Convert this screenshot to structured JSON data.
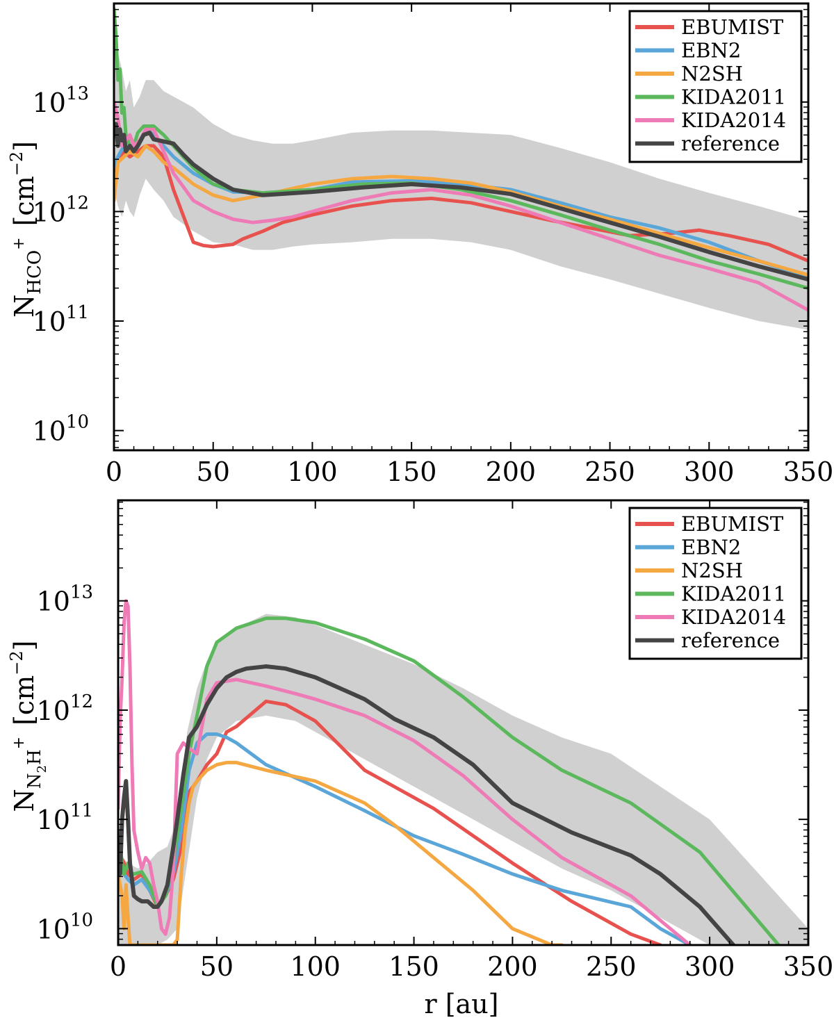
{
  "chart_data": [
    {
      "type": "line",
      "title": "",
      "xlabel": "",
      "ylabel": {
        "main": "N",
        "sub": "HCO",
        "sup": "+",
        "unit": "[cm",
        "unit_exp": "−2",
        "unit_close": "]"
      },
      "xlim": [
        0,
        350
      ],
      "ylim_log10": [
        9.82,
        13.9
      ],
      "yscale": "log",
      "x_ticks": [
        0,
        50,
        100,
        150,
        200,
        250,
        300,
        350
      ],
      "x_tick_labels": [
        "0",
        "50",
        "100",
        "150",
        "200",
        "250",
        "300",
        "350"
      ],
      "y_ticks": [
        {
          "exp": 10,
          "label": "10",
          "sup": "10"
        },
        {
          "exp": 11,
          "label": "10",
          "sup": "11"
        },
        {
          "exp": 12,
          "label": "10",
          "sup": "12"
        },
        {
          "exp": 13,
          "label": "10",
          "sup": "13"
        }
      ],
      "band": {
        "name": "spread",
        "color": "#d0d0d0",
        "x": [
          0,
          2,
          4,
          6,
          8,
          10,
          13,
          16,
          20,
          25,
          30,
          40,
          50,
          60,
          70,
          80,
          90,
          100,
          120,
          140,
          160,
          180,
          200,
          225,
          250,
          275,
          300,
          325,
          350
        ],
        "upper": [
          13.55,
          13.45,
          13.3,
          13.1,
          13.2,
          12.95,
          13.05,
          13.2,
          13.2,
          13.1,
          13.05,
          12.95,
          12.8,
          12.7,
          12.65,
          12.62,
          12.62,
          12.65,
          12.72,
          12.74,
          12.74,
          12.72,
          12.7,
          12.58,
          12.45,
          12.3,
          12.17,
          12.05,
          11.92
        ],
        "lower": [
          12.2,
          12.05,
          11.95,
          12.1,
          12.0,
          11.95,
          12.15,
          12.3,
          12.2,
          12.1,
          11.95,
          11.82,
          11.72,
          11.7,
          11.65,
          11.65,
          11.68,
          11.7,
          11.72,
          11.75,
          11.75,
          11.72,
          11.65,
          11.5,
          11.38,
          11.25,
          11.12,
          11.0,
          10.92
        ]
      },
      "series": [
        {
          "name": "EBUMIST",
          "color": "#e8524e",
          "x": [
            0,
            2,
            5,
            8,
            12,
            16,
            20,
            25,
            30,
            40,
            45,
            50,
            60,
            65,
            75,
            85,
            100,
            120,
            140,
            160,
            180,
            200,
            220,
            240,
            260,
            280,
            295,
            310,
            330,
            350
          ],
          "y": [
            12.2,
            12.45,
            12.55,
            12.5,
            12.55,
            12.6,
            12.6,
            12.5,
            12.2,
            11.72,
            11.69,
            11.68,
            11.7,
            11.75,
            11.82,
            11.9,
            11.97,
            12.05,
            12.1,
            12.12,
            12.08,
            12.0,
            11.92,
            11.85,
            11.78,
            11.8,
            11.83,
            11.78,
            11.7,
            11.55
          ]
        },
        {
          "name": "EBN2",
          "color": "#5ba6d9",
          "x": [
            0,
            2,
            5,
            8,
            12,
            16,
            20,
            25,
            30,
            40,
            50,
            60,
            75,
            100,
            120,
            150,
            175,
            200,
            225,
            250,
            275,
            300,
            325,
            350
          ],
          "y": [
            12.4,
            12.5,
            12.6,
            12.55,
            12.6,
            12.75,
            12.7,
            12.6,
            12.5,
            12.35,
            12.25,
            12.18,
            12.17,
            12.2,
            12.27,
            12.28,
            12.25,
            12.2,
            12.08,
            11.95,
            11.85,
            11.72,
            11.55,
            11.4
          ]
        },
        {
          "name": "N2SH",
          "color": "#f5a742",
          "x": [
            0,
            2,
            5,
            8,
            12,
            16,
            20,
            25,
            30,
            40,
            50,
            60,
            75,
            100,
            120,
            140,
            160,
            180,
            200,
            225,
            250,
            275,
            300,
            325,
            350
          ],
          "y": [
            12.1,
            12.45,
            12.5,
            12.55,
            12.5,
            12.6,
            12.55,
            12.45,
            12.4,
            12.25,
            12.15,
            12.1,
            12.15,
            12.25,
            12.3,
            12.32,
            12.3,
            12.26,
            12.18,
            12.05,
            11.93,
            11.8,
            11.67,
            11.55,
            11.42
          ]
        },
        {
          "name": "KIDA2011",
          "color": "#5cb85c",
          "x": [
            0,
            1,
            2,
            3,
            4,
            5,
            6,
            8,
            10,
            12,
            15,
            20,
            25,
            30,
            40,
            50,
            60,
            75,
            100,
            125,
            150,
            175,
            200,
            225,
            250,
            275,
            300,
            325,
            350
          ],
          "y": [
            13.85,
            13.6,
            13.2,
            13.3,
            12.9,
            12.95,
            12.7,
            12.6,
            12.6,
            12.72,
            12.78,
            12.78,
            12.7,
            12.6,
            12.4,
            12.25,
            12.2,
            12.17,
            12.2,
            12.25,
            12.26,
            12.2,
            12.1,
            11.97,
            11.83,
            11.7,
            11.55,
            11.43,
            11.3
          ]
        },
        {
          "name": "KIDA2014",
          "color": "#ee7ab6",
          "x": [
            0,
            2,
            4,
            6,
            8,
            10,
            13,
            16,
            20,
            25,
            30,
            40,
            50,
            60,
            70,
            80,
            90,
            100,
            120,
            140,
            160,
            180,
            200,
            225,
            250,
            275,
            300,
            325,
            350
          ],
          "y": [
            13.0,
            12.85,
            12.6,
            12.65,
            12.7,
            12.6,
            12.65,
            12.75,
            12.75,
            12.55,
            12.35,
            12.1,
            12.0,
            11.93,
            11.9,
            11.92,
            11.95,
            12.0,
            12.1,
            12.17,
            12.2,
            12.15,
            12.05,
            11.9,
            11.75,
            11.6,
            11.48,
            11.35,
            11.1
          ]
        },
        {
          "name": "reference",
          "color": "#444444",
          "x": [
            0,
            1,
            2,
            3,
            4,
            5,
            6,
            8,
            10,
            12,
            15,
            18,
            20,
            25,
            30,
            35,
            40,
            50,
            60,
            75,
            100,
            125,
            150,
            175,
            200,
            225,
            250,
            275,
            300,
            325,
            350
          ],
          "y": [
            12.7,
            12.8,
            12.6,
            12.75,
            12.65,
            12.7,
            12.55,
            12.6,
            12.55,
            12.6,
            12.7,
            12.72,
            12.66,
            12.64,
            12.62,
            12.52,
            12.43,
            12.3,
            12.2,
            12.15,
            12.18,
            12.22,
            12.25,
            12.22,
            12.16,
            12.03,
            11.9,
            11.77,
            11.63,
            11.5,
            11.38
          ]
        }
      ],
      "legend": {
        "position": "upper right",
        "entries": [
          "EBUMIST",
          "EBN2",
          "N2SH",
          "KIDA2011",
          "KIDA2014",
          "reference"
        ]
      }
    },
    {
      "type": "line",
      "title": "",
      "xlabel": "r [au]",
      "ylabel": {
        "main": "N",
        "sub": "N",
        "sub2": "2",
        "sub3": "H",
        "sup": "+",
        "unit": "[cm",
        "unit_exp": "−2",
        "unit_close": "]"
      },
      "xlim": [
        0,
        350
      ],
      "ylim_log10": [
        9.85,
        13.92
      ],
      "yscale": "log",
      "x_ticks": [
        0,
        50,
        100,
        150,
        200,
        250,
        300,
        350
      ],
      "x_tick_labels": [
        "0",
        "50",
        "100",
        "150",
        "200",
        "250",
        "300",
        "350"
      ],
      "y_ticks": [
        {
          "exp": 10,
          "label": "10",
          "sup": "10"
        },
        {
          "exp": 11,
          "label": "10",
          "sup": "11"
        },
        {
          "exp": 12,
          "label": "10",
          "sup": "12"
        },
        {
          "exp": 13,
          "label": "10",
          "sup": "13"
        }
      ],
      "band": {
        "name": "spread",
        "color": "#d0d0d0",
        "x": [
          0,
          5,
          10,
          15,
          20,
          25,
          30,
          35,
          40,
          45,
          50,
          60,
          75,
          90,
          100,
          125,
          150,
          175,
          200,
          225,
          250,
          275,
          300,
          325,
          350
        ],
        "upper": [
          10.7,
          10.6,
          10.55,
          10.6,
          10.7,
          10.75,
          11.0,
          11.8,
          12.2,
          12.45,
          12.6,
          12.75,
          12.88,
          12.85,
          12.78,
          12.6,
          12.42,
          12.2,
          11.95,
          11.75,
          11.6,
          11.3,
          11.0,
          10.5,
          10.0
        ],
        "lower": [
          9.85,
          9.85,
          9.85,
          9.85,
          9.85,
          9.9,
          10.0,
          10.6,
          11.2,
          11.55,
          11.75,
          11.9,
          11.95,
          11.9,
          11.8,
          11.55,
          11.3,
          11.05,
          10.8,
          10.55,
          10.35,
          10.1,
          9.85,
          9.85,
          9.85
        ]
      },
      "series": [
        {
          "name": "EBUMIST",
          "color": "#e8524e",
          "x": [
            0,
            3,
            5,
            8,
            12,
            16,
            20,
            24,
            28,
            32,
            36,
            40,
            45,
            50,
            55,
            60,
            75,
            85,
            100,
            125,
            140,
            160,
            200,
            230,
            260,
            275
          ],
          "y": [
            10.7,
            10.6,
            10.5,
            10.45,
            10.5,
            10.35,
            10.2,
            10.3,
            10.45,
            10.75,
            11.25,
            11.35,
            11.5,
            11.6,
            11.8,
            11.85,
            12.08,
            12.05,
            11.9,
            11.45,
            11.3,
            11.1,
            10.6,
            10.25,
            9.95,
            9.85
          ]
        },
        {
          "name": "EBN2",
          "color": "#5ba6d9",
          "x": [
            0,
            3,
            5,
            8,
            12,
            16,
            20,
            24,
            28,
            32,
            36,
            40,
            45,
            50,
            55,
            60,
            75,
            100,
            125,
            150,
            175,
            200,
            225,
            260,
            275,
            290
          ],
          "y": [
            10.6,
            10.5,
            10.45,
            10.4,
            10.45,
            10.35,
            10.22,
            10.3,
            10.5,
            10.9,
            11.45,
            11.7,
            11.78,
            11.78,
            11.75,
            11.7,
            11.5,
            11.3,
            11.08,
            10.85,
            10.68,
            10.5,
            10.35,
            10.2,
            10.0,
            9.85
          ]
        },
        {
          "name": "N2SH",
          "color": "#f5a742",
          "x": [
            0,
            2,
            3,
            4,
            5,
            6,
            7,
            8,
            10,
            12,
            15,
            18,
            22,
            25,
            28,
            30,
            32,
            34,
            36,
            38,
            40,
            45,
            50,
            55,
            60,
            75,
            100,
            125,
            140,
            160,
            180,
            200,
            220,
            225
          ],
          "y": [
            10.5,
            10.3,
            10.0,
            10.4,
            10.1,
            9.85,
            9.85,
            9.85,
            9.85,
            9.85,
            9.85,
            9.85,
            9.85,
            9.85,
            9.85,
            9.9,
            10.5,
            10.9,
            11.15,
            11.3,
            11.35,
            11.45,
            11.5,
            11.52,
            11.52,
            11.45,
            11.35,
            11.15,
            10.95,
            10.65,
            10.35,
            10.0,
            9.85,
            9.85
          ]
        },
        {
          "name": "KIDA2011",
          "color": "#5cb85c",
          "x": [
            0,
            2,
            3,
            4,
            5,
            6,
            7,
            8,
            12,
            16,
            20,
            24,
            28,
            32,
            36,
            40,
            45,
            50,
            60,
            75,
            85,
            100,
            125,
            150,
            175,
            200,
            225,
            260,
            295,
            335
          ],
          "y": [
            10.9,
            10.6,
            10.5,
            10.55,
            10.6,
            10.55,
            10.5,
            10.5,
            10.52,
            10.4,
            10.2,
            10.3,
            10.6,
            11.1,
            11.6,
            11.95,
            12.4,
            12.62,
            12.75,
            12.84,
            12.84,
            12.8,
            12.65,
            12.45,
            12.12,
            11.75,
            11.45,
            11.15,
            10.7,
            9.85
          ]
        },
        {
          "name": "KIDA2014",
          "color": "#ee7ab6",
          "x": [
            0,
            1,
            2,
            3,
            4,
            5,
            6,
            7,
            8,
            10,
            12,
            14,
            16,
            18,
            20,
            22,
            24,
            26,
            28,
            30,
            33,
            36,
            40,
            45,
            50,
            60,
            75,
            90,
            100,
            125,
            150,
            175,
            200,
            225,
            260,
            290
          ],
          "y": [
            11.1,
            11.9,
            12.3,
            12.8,
            13.0,
            12.95,
            12.4,
            11.5,
            10.9,
            10.7,
            10.55,
            10.65,
            10.6,
            10.4,
            10.25,
            10.0,
            9.95,
            10.1,
            10.55,
            11.6,
            11.7,
            11.65,
            11.6,
            12.1,
            12.25,
            12.28,
            12.22,
            12.15,
            12.1,
            11.95,
            11.72,
            11.4,
            11.0,
            10.65,
            10.3,
            9.85
          ]
        },
        {
          "name": "reference",
          "color": "#444444",
          "x": [
            0,
            1,
            2,
            3,
            4,
            5,
            6,
            8,
            10,
            12,
            15,
            18,
            20,
            22,
            25,
            28,
            30,
            33,
            36,
            40,
            45,
            50,
            55,
            60,
            65,
            75,
            85,
            100,
            125,
            140,
            160,
            180,
            200,
            230,
            260,
            275,
            295,
            312
          ],
          "y": [
            10.7,
            10.5,
            11.0,
            11.2,
            11.35,
            11.0,
            10.6,
            10.3,
            10.27,
            10.25,
            10.25,
            10.2,
            10.2,
            10.25,
            10.4,
            10.75,
            11.0,
            11.4,
            11.75,
            11.85,
            12.05,
            12.2,
            12.3,
            12.35,
            12.38,
            12.4,
            12.38,
            12.3,
            12.1,
            11.92,
            11.75,
            11.5,
            11.15,
            10.88,
            10.67,
            10.5,
            10.2,
            9.85
          ]
        }
      ],
      "legend": {
        "position": "upper right",
        "entries": [
          "EBUMIST",
          "EBN2",
          "N2SH",
          "KIDA2011",
          "KIDA2014",
          "reference"
        ]
      }
    }
  ]
}
